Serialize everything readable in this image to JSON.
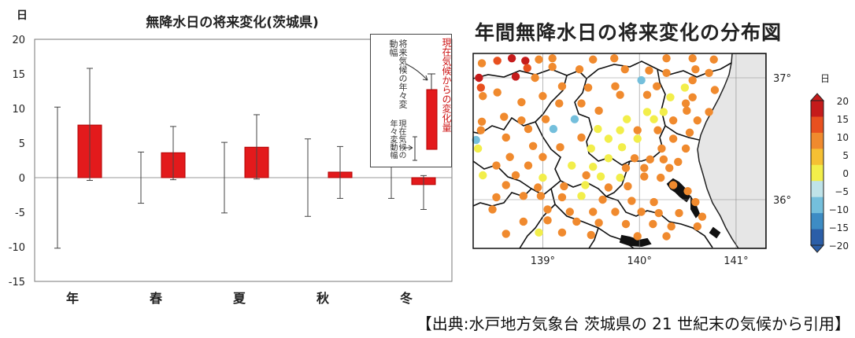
{
  "left_title": "無降水日の将来変化(茨城県)",
  "right_title": "年間無降水日の将来変化の分布図",
  "citation": "【出典:水戸地方気象台 茨城県の 21 世紀末の気候から引用】",
  "inset": {
    "current_change_label": "現在気候からの変化量",
    "future_variability_label": "将来気候の年々変動幅",
    "present_variability_label": "現在気候の年々変動幅"
  },
  "colors": {
    "bar": "#e31a1c",
    "bar_edge": "#b20000",
    "axis": "#555555",
    "map_land": "#ffffff",
    "sea": "#e6e6e6"
  },
  "chart_data": [
    {
      "type": "bar",
      "title": "無降水日の将来変化(茨城県)",
      "ylabel": "日",
      "xlabel": "",
      "ylim": [
        -15,
        20
      ],
      "yticks": [
        20,
        15,
        10,
        5,
        0,
        -5,
        -10,
        -15
      ],
      "categories": [
        "年",
        "春",
        "夏",
        "秋",
        "冬"
      ],
      "series": [
        {
          "values": [
            7.6,
            3.6,
            4.4,
            0.8,
            -1.0
          ]
        }
      ],
      "future_variability_range": [
        [
          -0.4,
          15.8
        ],
        [
          -0.3,
          7.4
        ],
        [
          -0.2,
          9.1
        ],
        [
          -3.0,
          4.5
        ],
        [
          -4.6,
          0.3
        ]
      ],
      "present_variability_range": [
        [
          -10.2,
          10.2
        ],
        [
          -3.7,
          3.7
        ],
        [
          -5.1,
          5.1
        ],
        [
          -5.6,
          5.6
        ],
        [
          -3.0,
          3.0
        ]
      ],
      "grid": false
    },
    {
      "type": "scatter",
      "title": "年間無降水日の将来変化の分布図",
      "xlabel": "",
      "ylabel": "",
      "xlim": [
        138.28,
        141.31
      ],
      "ylim": [
        35.6,
        37.2
      ],
      "xticks": [
        "139°",
        "140°",
        "141°"
      ],
      "yticks": [
        "37°",
        "36°"
      ],
      "xtick_values": [
        139,
        140,
        141
      ],
      "ytick_values": [
        37,
        36
      ],
      "grid": true,
      "colorbar": {
        "unit": "日",
        "ticks": [
          20,
          15,
          10,
          5,
          0,
          -5,
          -10,
          -15,
          -20
        ],
        "colors": [
          {
            "from": 17.5,
            "color": "#c51b1b"
          },
          {
            "from": 12.5,
            "color": "#e8501f"
          },
          {
            "from": 7.5,
            "color": "#f08a2e"
          },
          {
            "from": 2.5,
            "color": "#f5c033"
          },
          {
            "from": 0,
            "color": "#f2ee4a"
          },
          {
            "from": -2.5,
            "color": "#bfe3e8"
          },
          {
            "from": -7.5,
            "color": "#74bfdc"
          },
          {
            "from": -12.5,
            "color": "#3d8cc4"
          },
          {
            "from": -99,
            "color": "#2b5ea8"
          }
        ]
      },
      "points": [
        {
          "lon": 138.37,
          "lat": 37.12,
          "v": 8
        },
        {
          "lon": 138.53,
          "lat": 37.14,
          "v": 15
        },
        {
          "lon": 138.68,
          "lat": 37.16,
          "v": 18
        },
        {
          "lon": 138.82,
          "lat": 37.14,
          "v": 18
        },
        {
          "lon": 138.96,
          "lat": 37.15,
          "v": 10
        },
        {
          "lon": 139.1,
          "lat": 37.16,
          "v": 10
        },
        {
          "lon": 139.52,
          "lat": 37.15,
          "v": 9
        },
        {
          "lon": 139.74,
          "lat": 37.16,
          "v": 10
        },
        {
          "lon": 140.28,
          "lat": 37.16,
          "v": 9
        },
        {
          "lon": 140.55,
          "lat": 37.16,
          "v": 8
        },
        {
          "lon": 140.77,
          "lat": 37.15,
          "v": 8
        },
        {
          "lon": 138.84,
          "lat": 37.08,
          "v": 15
        },
        {
          "lon": 139.1,
          "lat": 37.09,
          "v": 10
        },
        {
          "lon": 139.38,
          "lat": 37.07,
          "v": 9
        },
        {
          "lon": 139.85,
          "lat": 37.07,
          "v": 8
        },
        {
          "lon": 140.1,
          "lat": 37.06,
          "v": 9
        },
        {
          "lon": 140.28,
          "lat": 37.04,
          "v": 8
        },
        {
          "lon": 140.58,
          "lat": 37.07,
          "v": 8
        },
        {
          "lon": 140.72,
          "lat": 37.04,
          "v": 9
        },
        {
          "lon": 138.34,
          "lat": 37.0,
          "v": 18
        },
        {
          "lon": 138.72,
          "lat": 37.01,
          "v": 18
        },
        {
          "lon": 138.92,
          "lat": 37.0,
          "v": 9
        },
        {
          "lon": 140.02,
          "lat": 36.98,
          "v": -5
        },
        {
          "lon": 140.55,
          "lat": 36.98,
          "v": 9
        },
        {
          "lon": 138.36,
          "lat": 36.92,
          "v": 15
        },
        {
          "lon": 138.53,
          "lat": 36.88,
          "v": 8
        },
        {
          "lon": 139.2,
          "lat": 36.93,
          "v": 10
        },
        {
          "lon": 139.47,
          "lat": 36.92,
          "v": 8
        },
        {
          "lon": 139.75,
          "lat": 36.93,
          "v": 9
        },
        {
          "lon": 140.18,
          "lat": 36.93,
          "v": 9
        },
        {
          "lon": 140.47,
          "lat": 36.92,
          "v": 1
        },
        {
          "lon": 140.78,
          "lat": 36.9,
          "v": 9
        },
        {
          "lon": 138.38,
          "lat": 36.85,
          "v": 8
        },
        {
          "lon": 139.0,
          "lat": 36.85,
          "v": 8
        },
        {
          "lon": 139.8,
          "lat": 36.86,
          "v": 8
        },
        {
          "lon": 140.08,
          "lat": 36.86,
          "v": 8
        },
        {
          "lon": 140.32,
          "lat": 36.84,
          "v": 1
        },
        {
          "lon": 140.55,
          "lat": 36.84,
          "v": 9
        },
        {
          "lon": 138.78,
          "lat": 36.8,
          "v": 9
        },
        {
          "lon": 139.17,
          "lat": 36.79,
          "v": 9
        },
        {
          "lon": 139.4,
          "lat": 36.79,
          "v": 8
        },
        {
          "lon": 140.48,
          "lat": 36.79,
          "v": 9
        },
        {
          "lon": 139.58,
          "lat": 36.73,
          "v": 8
        },
        {
          "lon": 140.08,
          "lat": 36.72,
          "v": 1
        },
        {
          "lon": 140.25,
          "lat": 36.72,
          "v": 1
        },
        {
          "lon": 140.49,
          "lat": 36.73,
          "v": 8
        },
        {
          "lon": 140.72,
          "lat": 36.72,
          "v": 9
        },
        {
          "lon": 138.37,
          "lat": 36.64,
          "v": 8
        },
        {
          "lon": 138.6,
          "lat": 36.68,
          "v": 9
        },
        {
          "lon": 138.78,
          "lat": 36.65,
          "v": 9
        },
        {
          "lon": 139.03,
          "lat": 36.66,
          "v": 9
        },
        {
          "lon": 139.33,
          "lat": 36.66,
          "v": -5
        },
        {
          "lon": 139.87,
          "lat": 36.66,
          "v": 1
        },
        {
          "lon": 140.15,
          "lat": 36.66,
          "v": 1
        },
        {
          "lon": 140.35,
          "lat": 36.65,
          "v": 9
        },
        {
          "lon": 140.6,
          "lat": 36.65,
          "v": 9
        },
        {
          "lon": 138.36,
          "lat": 36.57,
          "v": 9
        },
        {
          "lon": 138.85,
          "lat": 36.58,
          "v": 8
        },
        {
          "lon": 139.11,
          "lat": 36.58,
          "v": -5
        },
        {
          "lon": 139.57,
          "lat": 36.58,
          "v": 1
        },
        {
          "lon": 139.8,
          "lat": 36.57,
          "v": 1
        },
        {
          "lon": 139.98,
          "lat": 36.57,
          "v": 9
        },
        {
          "lon": 140.19,
          "lat": 36.57,
          "v": 9
        },
        {
          "lon": 140.52,
          "lat": 36.55,
          "v": 9
        },
        {
          "lon": 138.31,
          "lat": 36.49,
          "v": -5
        },
        {
          "lon": 138.62,
          "lat": 36.51,
          "v": 9
        },
        {
          "lon": 139.4,
          "lat": 36.51,
          "v": 9
        },
        {
          "lon": 139.68,
          "lat": 36.5,
          "v": 1
        },
        {
          "lon": 139.98,
          "lat": 36.5,
          "v": 1
        },
        {
          "lon": 140.35,
          "lat": 36.5,
          "v": 9
        },
        {
          "lon": 138.33,
          "lat": 36.42,
          "v": 1
        },
        {
          "lon": 138.9,
          "lat": 36.44,
          "v": 9
        },
        {
          "lon": 139.18,
          "lat": 36.43,
          "v": 9
        },
        {
          "lon": 139.5,
          "lat": 36.42,
          "v": 1
        },
        {
          "lon": 139.82,
          "lat": 36.43,
          "v": 1
        },
        {
          "lon": 140.23,
          "lat": 36.42,
          "v": 9
        },
        {
          "lon": 140.48,
          "lat": 36.42,
          "v": 8
        },
        {
          "lon": 138.66,
          "lat": 36.35,
          "v": 8
        },
        {
          "lon": 139.0,
          "lat": 36.35,
          "v": 9
        },
        {
          "lon": 139.68,
          "lat": 36.34,
          "v": 1
        },
        {
          "lon": 139.95,
          "lat": 36.34,
          "v": 9
        },
        {
          "lon": 140.11,
          "lat": 36.33,
          "v": 8
        },
        {
          "lon": 140.25,
          "lat": 36.33,
          "v": 9
        },
        {
          "lon": 140.4,
          "lat": 36.31,
          "v": 8
        },
        {
          "lon": 138.52,
          "lat": 36.28,
          "v": 8
        },
        {
          "lon": 138.85,
          "lat": 36.28,
          "v": 8
        },
        {
          "lon": 139.3,
          "lat": 36.28,
          "v": 1
        },
        {
          "lon": 139.52,
          "lat": 36.27,
          "v": 1
        },
        {
          "lon": 139.86,
          "lat": 36.26,
          "v": 9
        },
        {
          "lon": 140.05,
          "lat": 36.26,
          "v": 9
        },
        {
          "lon": 140.31,
          "lat": 36.26,
          "v": 9
        },
        {
          "lon": 138.38,
          "lat": 36.2,
          "v": 1
        },
        {
          "lon": 138.72,
          "lat": 36.2,
          "v": 8
        },
        {
          "lon": 139.0,
          "lat": 36.18,
          "v": 1
        },
        {
          "lon": 139.45,
          "lat": 36.2,
          "v": 9
        },
        {
          "lon": 139.6,
          "lat": 36.19,
          "v": 1
        },
        {
          "lon": 139.8,
          "lat": 36.18,
          "v": 1
        },
        {
          "lon": 140.05,
          "lat": 36.19,
          "v": 9
        },
        {
          "lon": 140.22,
          "lat": 36.18,
          "v": 9
        },
        {
          "lon": 138.62,
          "lat": 36.12,
          "v": 9
        },
        {
          "lon": 138.95,
          "lat": 36.1,
          "v": 8
        },
        {
          "lon": 139.22,
          "lat": 36.11,
          "v": 9
        },
        {
          "lon": 139.44,
          "lat": 36.12,
          "v": 1
        },
        {
          "lon": 139.68,
          "lat": 36.1,
          "v": 9
        },
        {
          "lon": 139.88,
          "lat": 36.11,
          "v": 9
        },
        {
          "lon": 140.35,
          "lat": 36.12,
          "v": 9
        },
        {
          "lon": 140.5,
          "lat": 36.07,
          "v": 8
        },
        {
          "lon": 138.52,
          "lat": 36.02,
          "v": 8
        },
        {
          "lon": 138.8,
          "lat": 36.03,
          "v": 9
        },
        {
          "lon": 138.98,
          "lat": 36.03,
          "v": 9
        },
        {
          "lon": 139.2,
          "lat": 36.02,
          "v": 9
        },
        {
          "lon": 139.4,
          "lat": 36.03,
          "v": 1
        },
        {
          "lon": 139.62,
          "lat": 36.0,
          "v": 9
        },
        {
          "lon": 139.92,
          "lat": 35.99,
          "v": 9
        },
        {
          "lon": 140.15,
          "lat": 35.98,
          "v": 9
        },
        {
          "lon": 140.58,
          "lat": 35.98,
          "v": 9
        },
        {
          "lon": 138.48,
          "lat": 35.92,
          "v": 8
        },
        {
          "lon": 139.05,
          "lat": 35.92,
          "v": 9
        },
        {
          "lon": 139.28,
          "lat": 35.9,
          "v": 9
        },
        {
          "lon": 139.52,
          "lat": 35.9,
          "v": 8
        },
        {
          "lon": 139.75,
          "lat": 35.9,
          "v": 9
        },
        {
          "lon": 140.02,
          "lat": 35.9,
          "v": 9
        },
        {
          "lon": 140.2,
          "lat": 35.89,
          "v": 9
        },
        {
          "lon": 140.41,
          "lat": 35.89,
          "v": 9
        },
        {
          "lon": 140.65,
          "lat": 35.86,
          "v": 9
        },
        {
          "lon": 138.8,
          "lat": 35.82,
          "v": 8
        },
        {
          "lon": 139.05,
          "lat": 35.83,
          "v": 9
        },
        {
          "lon": 139.35,
          "lat": 35.82,
          "v": 9
        },
        {
          "lon": 139.58,
          "lat": 35.81,
          "v": 9
        },
        {
          "lon": 139.86,
          "lat": 35.8,
          "v": 9
        },
        {
          "lon": 140.14,
          "lat": 35.8,
          "v": 9
        },
        {
          "lon": 140.33,
          "lat": 35.78,
          "v": 8
        },
        {
          "lon": 140.6,
          "lat": 35.78,
          "v": 8
        },
        {
          "lon": 138.62,
          "lat": 35.72,
          "v": 8
        },
        {
          "lon": 138.96,
          "lat": 35.73,
          "v": 1
        },
        {
          "lon": 139.2,
          "lat": 35.73,
          "v": 9
        },
        {
          "lon": 139.5,
          "lat": 35.71,
          "v": 9
        },
        {
          "lon": 139.98,
          "lat": 35.7,
          "v": 9
        },
        {
          "lon": 140.28,
          "lat": 35.7,
          "v": 9
        }
      ]
    }
  ]
}
